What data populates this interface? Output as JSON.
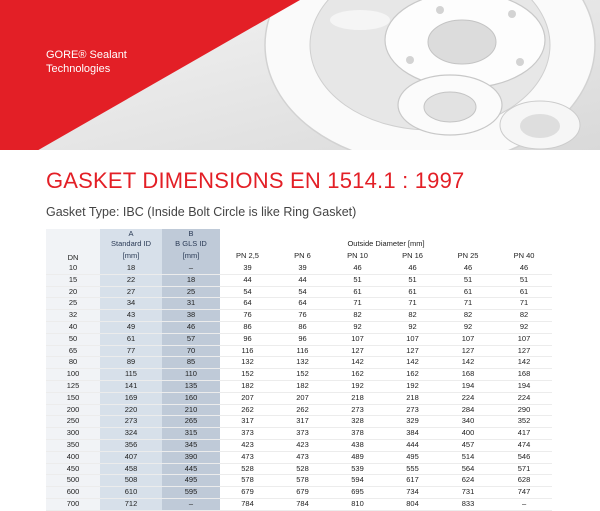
{
  "brand": {
    "line1": "GORE® Sealant",
    "line2": "Technologies"
  },
  "colors": {
    "brand_red": "#e31f26",
    "dn_column": "#f1f3f6",
    "column_a": "#d7e0ea",
    "column_b": "#bfcad8"
  },
  "title": "GASKET DIMENSIONS EN 1514.1 : 1997",
  "subtitle": "Gasket Type: IBC (Inside Bolt Circle is like Ring Gasket)",
  "table": {
    "dn_header": "DN",
    "col_a": {
      "letter": "A",
      "line1": "Standard ID",
      "line2": "[mm]"
    },
    "col_b": {
      "letter": "B",
      "line1": "B GLS ID",
      "line2": "[mm]"
    },
    "od_header": "Outside Diameter [mm]",
    "pn_headers": [
      "PN 2,5",
      "PN 6",
      "PN 10",
      "PN 16",
      "PN 25",
      "PN 40"
    ],
    "rows": [
      [
        "10",
        "18",
        "–",
        "39",
        "39",
        "46",
        "46",
        "46",
        "46"
      ],
      [
        "15",
        "22",
        "18",
        "44",
        "44",
        "51",
        "51",
        "51",
        "51"
      ],
      [
        "20",
        "27",
        "25",
        "54",
        "54",
        "61",
        "61",
        "61",
        "61"
      ],
      [
        "25",
        "34",
        "31",
        "64",
        "64",
        "71",
        "71",
        "71",
        "71"
      ],
      [
        "32",
        "43",
        "38",
        "76",
        "76",
        "82",
        "82",
        "82",
        "82"
      ],
      [
        "40",
        "49",
        "46",
        "86",
        "86",
        "92",
        "92",
        "92",
        "92"
      ],
      [
        "50",
        "61",
        "57",
        "96",
        "96",
        "107",
        "107",
        "107",
        "107"
      ],
      [
        "65",
        "77",
        "70",
        "116",
        "116",
        "127",
        "127",
        "127",
        "127"
      ],
      [
        "80",
        "89",
        "85",
        "132",
        "132",
        "142",
        "142",
        "142",
        "142"
      ],
      [
        "100",
        "115",
        "110",
        "152",
        "152",
        "162",
        "162",
        "168",
        "168"
      ],
      [
        "125",
        "141",
        "135",
        "182",
        "182",
        "192",
        "192",
        "194",
        "194"
      ],
      [
        "150",
        "169",
        "160",
        "207",
        "207",
        "218",
        "218",
        "224",
        "224"
      ],
      [
        "200",
        "220",
        "210",
        "262",
        "262",
        "273",
        "273",
        "284",
        "290"
      ],
      [
        "250",
        "273",
        "265",
        "317",
        "317",
        "328",
        "329",
        "340",
        "352"
      ],
      [
        "300",
        "324",
        "315",
        "373",
        "373",
        "378",
        "384",
        "400",
        "417"
      ],
      [
        "350",
        "356",
        "345",
        "423",
        "423",
        "438",
        "444",
        "457",
        "474"
      ],
      [
        "400",
        "407",
        "390",
        "473",
        "473",
        "489",
        "495",
        "514",
        "546"
      ],
      [
        "450",
        "458",
        "445",
        "528",
        "528",
        "539",
        "555",
        "564",
        "571"
      ],
      [
        "500",
        "508",
        "495",
        "578",
        "578",
        "594",
        "617",
        "624",
        "628"
      ],
      [
        "600",
        "610",
        "595",
        "679",
        "679",
        "695",
        "734",
        "731",
        "747"
      ],
      [
        "700",
        "712",
        "–",
        "784",
        "784",
        "810",
        "804",
        "833",
        "–"
      ]
    ]
  }
}
